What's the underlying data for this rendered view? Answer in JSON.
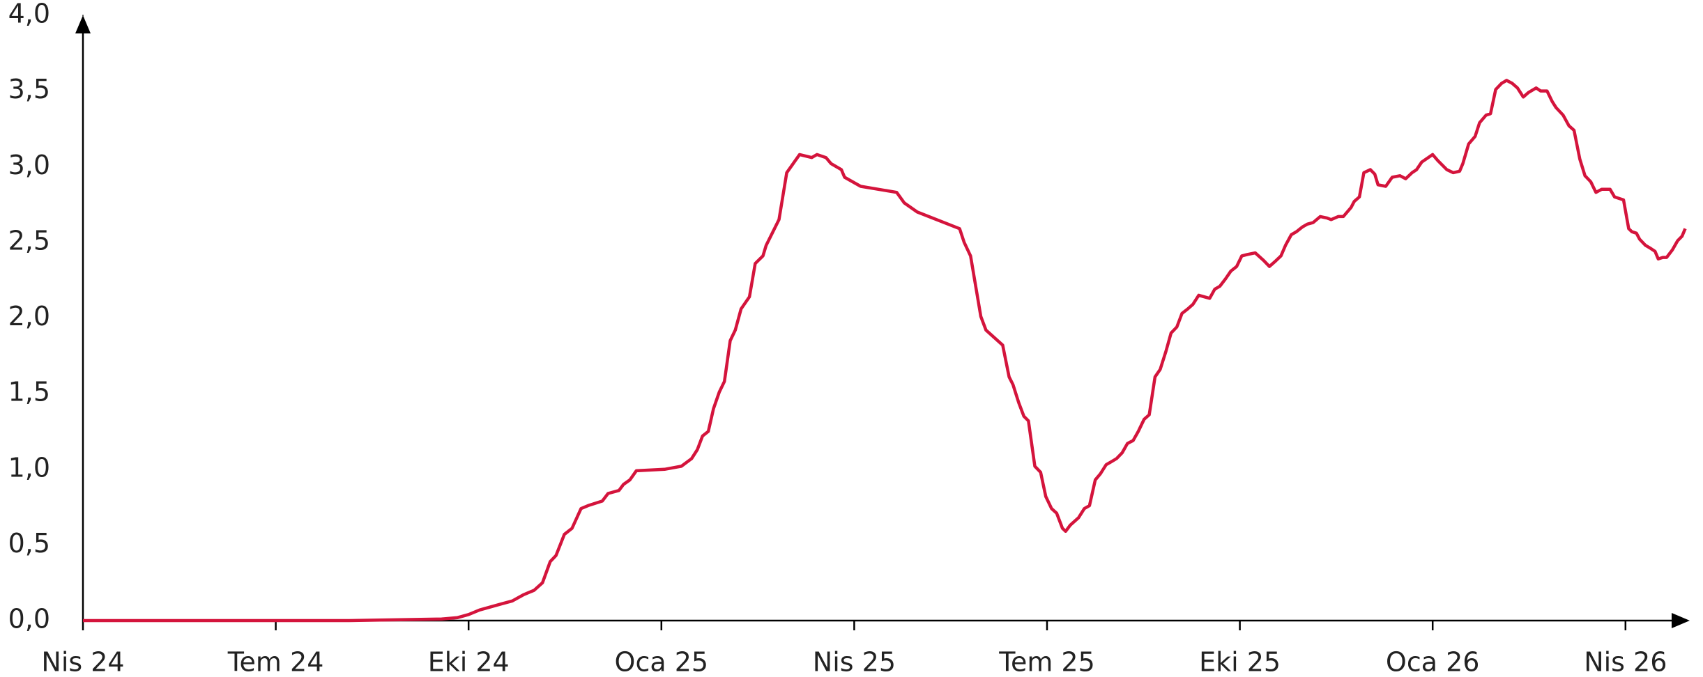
{
  "chart_data": {
    "type": "line",
    "series": [
      {
        "color": "#d4143c",
        "x": [
          0,
          4.14,
          5.58,
          5.83,
          6.0,
          6.17,
          6.34,
          6.51,
          6.68,
          6.85,
          7.02,
          7.15,
          7.27,
          7.36,
          7.49,
          7.61,
          7.75,
          7.86,
          8.08,
          8.17,
          8.34,
          8.41,
          8.51,
          8.61,
          9.05,
          9.31,
          9.47,
          9.56,
          9.64,
          9.73,
          9.81,
          9.9,
          9.98,
          10.07,
          10.15,
          10.24,
          10.37,
          10.46,
          10.58,
          10.63,
          10.83,
          10.95,
          11.05,
          11.15,
          11.34,
          11.42,
          11.56,
          11.64,
          11.8,
          11.85,
          12.1,
          12.66,
          12.78,
          12.98,
          13.64,
          13.71,
          13.81,
          13.97,
          14.05,
          14.31,
          14.41,
          14.47,
          14.56,
          14.64,
          14.71,
          14.81,
          14.9,
          14.98,
          15.07,
          15.15,
          15.24,
          15.29,
          15.36,
          15.49,
          15.58,
          15.66,
          15.75,
          15.83,
          15.92,
          16.0,
          16.08,
          16.17,
          16.25,
          16.34,
          16.42,
          16.51,
          16.59,
          16.68,
          16.76,
          16.85,
          16.93,
          17.02,
          17.1,
          17.19,
          17.27,
          17.36,
          17.53,
          17.61,
          17.69,
          17.78,
          17.86,
          17.95,
          18.03,
          18.12,
          18.24,
          18.37,
          18.46,
          18.54,
          18.64,
          18.71,
          18.8,
          18.88,
          18.97,
          19.05,
          19.14,
          19.25,
          19.36,
          19.42,
          19.53,
          19.61,
          19.73,
          19.78,
          19.86,
          19.93,
          20.03,
          20.1,
          20.15,
          20.27,
          20.37,
          20.49,
          20.58,
          20.68,
          20.75,
          20.83,
          21.0,
          21.08,
          21.22,
          21.32,
          21.42,
          21.47,
          21.56,
          21.66,
          21.73,
          21.83,
          21.9,
          21.98,
          22.07,
          22.15,
          22.24,
          22.32,
          22.41,
          22.49,
          22.61,
          22.68,
          22.78,
          22.86,
          22.92,
          23.03,
          23.12,
          23.2,
          23.29,
          23.37,
          23.46,
          23.54,
          23.63,
          23.71,
          23.76,
          23.83,
          23.97,
          24.05,
          24.1,
          24.17,
          24.22,
          24.31,
          24.39,
          24.46,
          24.51,
          24.58,
          24.64,
          24.73,
          24.81,
          24.88,
          24.93
        ],
        "values": [
          0,
          0,
          0.01,
          0.02,
          0.04,
          0.07,
          0.09,
          0.11,
          0.13,
          0.17,
          0.2,
          0.25,
          0.39,
          0.43,
          0.57,
          0.61,
          0.74,
          0.76,
          0.79,
          0.84,
          0.86,
          0.9,
          0.93,
          0.99,
          1.0,
          1.02,
          1.07,
          1.13,
          1.22,
          1.25,
          1.4,
          1.51,
          1.58,
          1.85,
          1.92,
          2.06,
          2.14,
          2.36,
          2.41,
          2.48,
          2.65,
          2.96,
          3.02,
          3.08,
          3.06,
          3.08,
          3.06,
          3.02,
          2.98,
          2.93,
          2.87,
          2.83,
          2.76,
          2.7,
          2.59,
          2.5,
          2.41,
          2.01,
          1.92,
          1.82,
          1.61,
          1.56,
          1.44,
          1.35,
          1.32,
          1.02,
          0.98,
          0.82,
          0.74,
          0.71,
          0.61,
          0.59,
          0.63,
          0.68,
          0.74,
          0.76,
          0.93,
          0.97,
          1.03,
          1.05,
          1.07,
          1.11,
          1.17,
          1.19,
          1.25,
          1.33,
          1.36,
          1.61,
          1.66,
          1.78,
          1.9,
          1.94,
          2.03,
          2.06,
          2.09,
          2.15,
          2.13,
          2.19,
          2.21,
          2.26,
          2.31,
          2.34,
          2.41,
          2.42,
          2.43,
          2.38,
          2.34,
          2.37,
          2.41,
          2.48,
          2.55,
          2.57,
          2.6,
          2.62,
          2.63,
          2.67,
          2.66,
          2.65,
          2.67,
          2.67,
          2.73,
          2.77,
          2.8,
          2.96,
          2.98,
          2.95,
          2.88,
          2.87,
          2.93,
          2.94,
          2.92,
          2.96,
          2.98,
          3.03,
          3.08,
          3.04,
          2.98,
          2.96,
          2.97,
          3.02,
          3.15,
          3.2,
          3.29,
          3.34,
          3.35,
          3.51,
          3.55,
          3.57,
          3.55,
          3.52,
          3.46,
          3.49,
          3.52,
          3.5,
          3.5,
          3.43,
          3.39,
          3.34,
          3.27,
          3.24,
          3.05,
          2.94,
          2.9,
          2.83,
          2.85,
          2.85,
          2.85,
          2.8,
          2.78,
          2.59,
          2.57,
          2.56,
          2.52,
          2.48,
          2.46,
          2.44,
          2.39,
          2.4,
          2.4,
          2.45,
          2.51,
          2.54,
          2.59
        ]
      }
    ],
    "xlim": [
      0,
      25
    ],
    "xticks": [
      {
        "value": 0,
        "label": "Nis 24"
      },
      {
        "value": 3,
        "label": "Tem 24"
      },
      {
        "value": 6,
        "label": "Eki 24"
      },
      {
        "value": 9,
        "label": "Oca 25"
      },
      {
        "value": 12,
        "label": "Nis 25"
      },
      {
        "value": 15,
        "label": "Tem 25"
      },
      {
        "value": 18,
        "label": "Eki 25"
      },
      {
        "value": 21,
        "label": "Oca 26"
      },
      {
        "value": 24,
        "label": "Nis 26"
      }
    ],
    "ylim": [
      0,
      4
    ],
    "yticks": [
      {
        "value": 0,
        "label": "0,0"
      },
      {
        "value": 0.5,
        "label": "0,5"
      },
      {
        "value": 1,
        "label": "1,0"
      },
      {
        "value": 1.5,
        "label": "1,5"
      },
      {
        "value": 2,
        "label": "2,0"
      },
      {
        "value": 2.5,
        "label": "2,5"
      },
      {
        "value": 3,
        "label": "3,0"
      },
      {
        "value": 3.5,
        "label": "3,5"
      },
      {
        "value": 4,
        "label": "4,0"
      }
    ],
    "grid": false
  }
}
